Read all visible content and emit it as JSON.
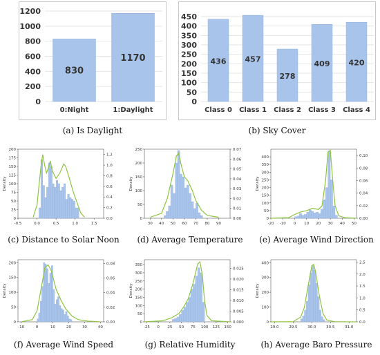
{
  "figure": {
    "captions": {
      "a": "(a) Is Daylight",
      "b": "(b) Sky Cover",
      "c": "(c) Distance to Solar Noon",
      "d": "(d) Average Temperature",
      "e": "(e) Average Wind Direction",
      "f": "(f) Average Wind Speed",
      "g": "(g) Relative Humidity",
      "h": "(h) Average Baro Pressure"
    }
  },
  "colors": {
    "bar": "#a8c4ea",
    "bar_edge": "#8fb1e0",
    "kde": "#8dc63f",
    "grid": "#e6e6e6",
    "text": "#333333"
  },
  "chart_data": [
    {
      "id": "a",
      "type": "bar",
      "categories": [
        "0:Night",
        "1:Daylight"
      ],
      "values": [
        830,
        1170
      ],
      "data_labels": [
        "830",
        "1170"
      ],
      "ylim": [
        0,
        1200
      ],
      "yticks": [
        "0",
        "200",
        "400",
        "600",
        "800",
        "1000",
        "1200"
      ],
      "grid": true
    },
    {
      "id": "b",
      "type": "bar",
      "categories": [
        "Class 0",
        "Class 1",
        "Class 2",
        "Class 3",
        "Class 4"
      ],
      "values": [
        436,
        457,
        278,
        409,
        420
      ],
      "data_labels": [
        "436",
        "457",
        "278",
        "409",
        "420"
      ],
      "ylim": [
        0,
        450
      ],
      "yticks": [
        "0",
        "50",
        "100",
        "150",
        "200",
        "250",
        "300",
        "350",
        "400",
        "450"
      ],
      "grid": true
    },
    {
      "id": "c",
      "type": "histogram",
      "ylabel": "Density",
      "xlim": [
        -0.5,
        1.75
      ],
      "xticks": [
        "-0.5",
        "0.0",
        "0.5",
        "1.0",
        "1.5"
      ],
      "ylim_left": [
        0,
        200
      ],
      "yticks_left": [
        "0",
        "25",
        "50",
        "75",
        "100",
        "125",
        "150",
        "175",
        "200"
      ],
      "ylim_right": [
        0,
        1.3
      ],
      "yticks_right": [
        "0.0",
        "0.2",
        "0.4",
        "0.6",
        "0.8",
        "1.0",
        "1.2"
      ],
      "bins": [
        [
          0.05,
          0.1,
          30
        ],
        [
          0.1,
          0.15,
          170
        ],
        [
          0.15,
          0.2,
          95
        ],
        [
          0.2,
          0.25,
          60
        ],
        [
          0.25,
          0.3,
          90
        ],
        [
          0.3,
          0.35,
          160
        ],
        [
          0.35,
          0.4,
          150
        ],
        [
          0.4,
          0.45,
          100
        ],
        [
          0.45,
          0.5,
          90
        ],
        [
          0.5,
          0.55,
          110
        ],
        [
          0.55,
          0.6,
          100
        ],
        [
          0.6,
          0.65,
          80
        ],
        [
          0.65,
          0.7,
          90
        ],
        [
          0.7,
          0.75,
          100
        ],
        [
          0.75,
          0.8,
          55
        ],
        [
          0.8,
          0.85,
          70
        ],
        [
          0.85,
          0.9,
          60
        ],
        [
          0.9,
          0.95,
          55
        ],
        [
          0.95,
          1.0,
          50
        ],
        [
          1.0,
          1.05,
          30
        ],
        [
          1.05,
          1.1,
          30
        ]
      ],
      "kde": [
        [
          -0.1,
          0.02
        ],
        [
          0.0,
          0.25
        ],
        [
          0.05,
          0.6
        ],
        [
          0.1,
          0.95
        ],
        [
          0.15,
          1.2
        ],
        [
          0.2,
          1.0
        ],
        [
          0.25,
          0.85
        ],
        [
          0.3,
          0.95
        ],
        [
          0.35,
          1.08
        ],
        [
          0.4,
          0.9
        ],
        [
          0.5,
          0.75
        ],
        [
          0.6,
          0.85
        ],
        [
          0.7,
          1.02
        ],
        [
          0.75,
          0.98
        ],
        [
          0.85,
          0.75
        ],
        [
          0.95,
          0.5
        ],
        [
          1.05,
          0.3
        ],
        [
          1.15,
          0.1
        ],
        [
          1.25,
          0.02
        ]
      ]
    },
    {
      "id": "d",
      "type": "histogram",
      "ylabel": "Density",
      "xlim": [
        25,
        100
      ],
      "xticks": [
        "30",
        "40",
        "50",
        "60",
        "70",
        "80",
        "90"
      ],
      "ylim_left": [
        0,
        250
      ],
      "yticks_left": [
        "0",
        "50",
        "100",
        "150",
        "200",
        "250"
      ],
      "ylim_right": [
        0,
        0.07
      ],
      "yticks_right": [
        "0.00",
        "0.01",
        "0.02",
        "0.03",
        "0.04",
        "0.05",
        "0.06",
        "0.07"
      ],
      "bins": [
        [
          42,
          44,
          10
        ],
        [
          44,
          46,
          25
        ],
        [
          46,
          48,
          45
        ],
        [
          48,
          50,
          120
        ],
        [
          50,
          52,
          90
        ],
        [
          52,
          54,
          200
        ],
        [
          54,
          56,
          245
        ],
        [
          56,
          58,
          160
        ],
        [
          58,
          60,
          150
        ],
        [
          60,
          62,
          110
        ],
        [
          62,
          64,
          120
        ],
        [
          64,
          66,
          90
        ],
        [
          66,
          68,
          60
        ],
        [
          68,
          70,
          35
        ],
        [
          70,
          72,
          55
        ],
        [
          72,
          74,
          20
        ],
        [
          74,
          76,
          10
        ]
      ],
      "kde": [
        [
          30,
          0.001
        ],
        [
          40,
          0.005
        ],
        [
          45,
          0.02
        ],
        [
          50,
          0.045
        ],
        [
          53,
          0.063
        ],
        [
          55,
          0.066
        ],
        [
          57,
          0.055
        ],
        [
          60,
          0.042
        ],
        [
          63,
          0.038
        ],
        [
          67,
          0.028
        ],
        [
          70,
          0.018
        ],
        [
          75,
          0.008
        ],
        [
          80,
          0.003
        ],
        [
          90,
          0.001
        ]
      ]
    },
    {
      "id": "e",
      "type": "histogram",
      "ylabel": "Density",
      "xlim": [
        -20,
        52
      ],
      "xticks": [
        "-20",
        "-10",
        "0",
        "10",
        "20",
        "30",
        "40",
        "50"
      ],
      "ylim_left": [
        0,
        450
      ],
      "yticks_left": [
        "0",
        "50",
        "100",
        "150",
        "200",
        "250",
        "300",
        "350",
        "400"
      ],
      "ylim_right": [
        0,
        0.11
      ],
      "yticks_right": [
        "0.00",
        "0.02",
        "0.04",
        "0.06",
        "0.08",
        "0.10"
      ],
      "bins": [
        [
          0,
          2,
          10
        ],
        [
          2,
          4,
          15
        ],
        [
          4,
          6,
          30
        ],
        [
          6,
          8,
          20
        ],
        [
          8,
          10,
          25
        ],
        [
          10,
          12,
          40
        ],
        [
          12,
          14,
          55
        ],
        [
          14,
          16,
          45
        ],
        [
          16,
          18,
          35
        ],
        [
          18,
          20,
          40
        ],
        [
          20,
          22,
          30
        ],
        [
          22,
          24,
          60
        ],
        [
          24,
          26,
          120
        ],
        [
          26,
          28,
          200
        ],
        [
          28,
          30,
          440
        ],
        [
          30,
          32,
          250
        ],
        [
          32,
          34,
          80
        ],
        [
          34,
          36,
          20
        ]
      ],
      "kde": [
        [
          -20,
          0.0
        ],
        [
          -5,
          0.001
        ],
        [
          0,
          0.006
        ],
        [
          5,
          0.01
        ],
        [
          10,
          0.012
        ],
        [
          15,
          0.016
        ],
        [
          20,
          0.014
        ],
        [
          23,
          0.02
        ],
        [
          26,
          0.06
        ],
        [
          28,
          0.105
        ],
        [
          30,
          0.108
        ],
        [
          32,
          0.06
        ],
        [
          34,
          0.02
        ],
        [
          37,
          0.004
        ],
        [
          42,
          0.001
        ],
        [
          52,
          0.0
        ]
      ]
    },
    {
      "id": "f",
      "type": "histogram",
      "ylabel": "Density",
      "xlim": [
        -12,
        42
      ],
      "xticks": [
        "-10",
        "0",
        "10",
        "20",
        "30",
        "40"
      ],
      "ylim_left": [
        0,
        210
      ],
      "yticks_left": [
        "0",
        "50",
        "100",
        "150",
        "200"
      ],
      "ylim_right": [
        0,
        0.085
      ],
      "yticks_right": [
        "0.00",
        "0.02",
        "0.04",
        "0.06",
        "0.08"
      ],
      "bins": [
        [
          0,
          1,
          10
        ],
        [
          1,
          2,
          30
        ],
        [
          2,
          3,
          70
        ],
        [
          3,
          4,
          120
        ],
        [
          4,
          5,
          200
        ],
        [
          5,
          6,
          195
        ],
        [
          6,
          7,
          180
        ],
        [
          7,
          8,
          130
        ],
        [
          8,
          9,
          165
        ],
        [
          9,
          10,
          190
        ],
        [
          10,
          11,
          110
        ],
        [
          11,
          12,
          60
        ],
        [
          12,
          13,
          75
        ],
        [
          13,
          14,
          85
        ],
        [
          14,
          15,
          55
        ],
        [
          15,
          16,
          45
        ],
        [
          16,
          17,
          40
        ],
        [
          17,
          18,
          25
        ],
        [
          18,
          19,
          35
        ],
        [
          19,
          20,
          20
        ],
        [
          20,
          21,
          10
        ],
        [
          21,
          22,
          8
        ]
      ],
      "kde": [
        [
          -10,
          0.0
        ],
        [
          -3,
          0.003
        ],
        [
          0,
          0.015
        ],
        [
          3,
          0.05
        ],
        [
          5,
          0.074
        ],
        [
          7,
          0.078
        ],
        [
          9,
          0.07
        ],
        [
          12,
          0.045
        ],
        [
          15,
          0.03
        ],
        [
          18,
          0.018
        ],
        [
          22,
          0.008
        ],
        [
          26,
          0.003
        ],
        [
          32,
          0.001
        ],
        [
          40,
          0.0
        ]
      ]
    },
    {
      "id": "g",
      "type": "histogram",
      "ylabel": "Density",
      "xlim": [
        -30,
        155
      ],
      "xticks": [
        "-25",
        "0",
        "25",
        "50",
        "75",
        "100",
        "125",
        "150"
      ],
      "ylim_left": [
        0,
        380
      ],
      "yticks_left": [
        "0",
        "50",
        "100",
        "150",
        "200",
        "250",
        "300",
        "350"
      ],
      "ylim_right": [
        0,
        0.029
      ],
      "yticks_right": [
        "0.000",
        "0.005",
        "0.010",
        "0.015",
        "0.020",
        "0.025"
      ],
      "bins": [
        [
          30,
          35,
          15
        ],
        [
          35,
          40,
          20
        ],
        [
          40,
          45,
          30
        ],
        [
          45,
          50,
          45
        ],
        [
          50,
          55,
          70
        ],
        [
          55,
          60,
          90
        ],
        [
          60,
          65,
          120
        ],
        [
          65,
          70,
          150
        ],
        [
          70,
          75,
          200
        ],
        [
          75,
          80,
          230
        ],
        [
          80,
          85,
          280
        ],
        [
          85,
          90,
          330
        ],
        [
          90,
          95,
          300
        ],
        [
          95,
          100,
          120
        ]
      ],
      "kde": [
        [
          -30,
          0.0
        ],
        [
          10,
          0.0005
        ],
        [
          30,
          0.002
        ],
        [
          45,
          0.004
        ],
        [
          55,
          0.007
        ],
        [
          65,
          0.011
        ],
        [
          75,
          0.018
        ],
        [
          85,
          0.027
        ],
        [
          90,
          0.028
        ],
        [
          95,
          0.022
        ],
        [
          100,
          0.01
        ],
        [
          105,
          0.003
        ],
        [
          115,
          0.0005
        ],
        [
          155,
          0.0
        ]
      ]
    },
    {
      "id": "h",
      "type": "histogram",
      "ylabel": "Density",
      "xlim": [
        28.9,
        31.2
      ],
      "xticks": [
        "29.0",
        "29.5",
        "30.0",
        "30.5",
        "31.0"
      ],
      "ylim_left": [
        0,
        420
      ],
      "yticks_left": [
        "0",
        "100",
        "200",
        "300",
        "400"
      ],
      "ylim_right": [
        0,
        2.6
      ],
      "yticks_right": [
        "0.0",
        "0.5",
        "1.0",
        "1.5",
        "2.0",
        "2.5"
      ],
      "bins": [
        [
          29.7,
          29.75,
          20
        ],
        [
          29.75,
          29.8,
          40
        ],
        [
          29.8,
          29.85,
          80
        ],
        [
          29.85,
          29.9,
          140
        ],
        [
          29.9,
          29.95,
          250
        ],
        [
          29.95,
          30.0,
          330
        ],
        [
          30.0,
          30.05,
          380
        ],
        [
          30.05,
          30.1,
          350
        ],
        [
          30.1,
          30.15,
          260
        ],
        [
          30.15,
          30.2,
          170
        ],
        [
          30.2,
          30.25,
          80
        ],
        [
          30.25,
          30.3,
          35
        ],
        [
          30.3,
          30.35,
          15
        ]
      ],
      "kde": [
        [
          28.9,
          0.0
        ],
        [
          29.5,
          0.01
        ],
        [
          29.7,
          0.2
        ],
        [
          29.8,
          0.6
        ],
        [
          29.9,
          1.5
        ],
        [
          30.0,
          2.35
        ],
        [
          30.05,
          2.4
        ],
        [
          30.1,
          2.1
        ],
        [
          30.2,
          1.1
        ],
        [
          30.3,
          0.35
        ],
        [
          30.4,
          0.08
        ],
        [
          30.6,
          0.01
        ],
        [
          31.2,
          0.0
        ]
      ]
    }
  ]
}
